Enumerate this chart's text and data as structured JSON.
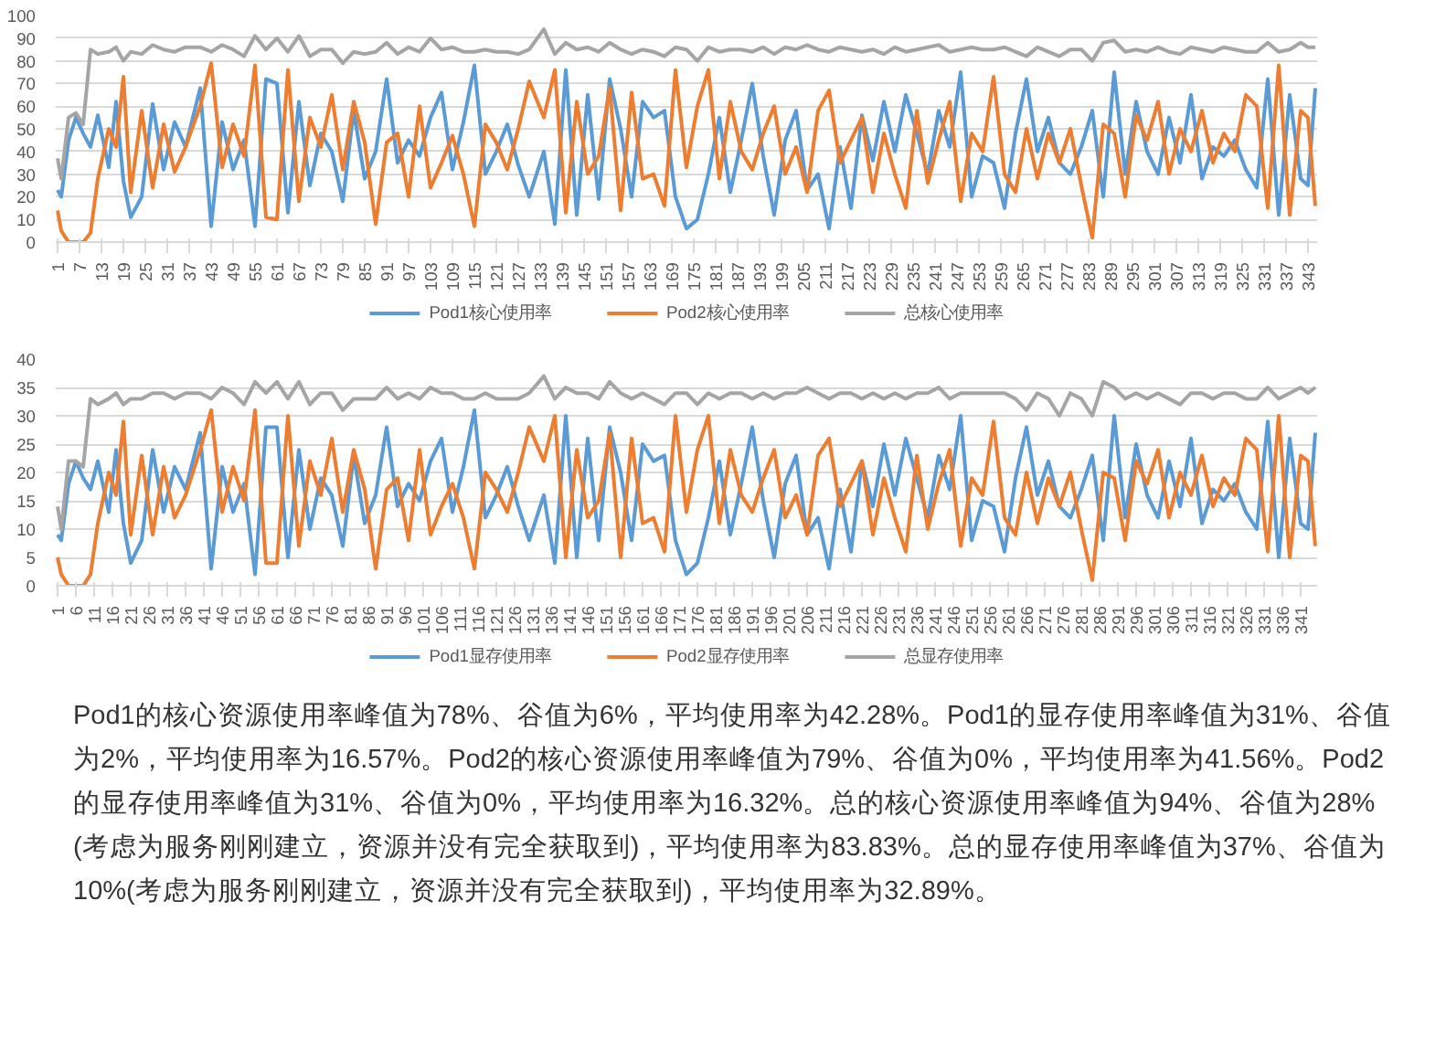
{
  "chart_data": [
    {
      "type": "line",
      "x": [
        1,
        2,
        4,
        6,
        8,
        10,
        12,
        15,
        17,
        19,
        21,
        24,
        27,
        30,
        33,
        36,
        40,
        43,
        46,
        49,
        52,
        55,
        58,
        61,
        64,
        67,
        70,
        73,
        76,
        79,
        82,
        85,
        88,
        91,
        94,
        97,
        100,
        103,
        106,
        109,
        112,
        115,
        118,
        121,
        124,
        127,
        130,
        134,
        137,
        140,
        143,
        146,
        149,
        152,
        155,
        158,
        161,
        164,
        167,
        170,
        173,
        176,
        179,
        182,
        185,
        188,
        191,
        194,
        197,
        200,
        203,
        206,
        209,
        212,
        215,
        218,
        221,
        224,
        227,
        230,
        233,
        236,
        239,
        242,
        245,
        248,
        251,
        254,
        257,
        260,
        263,
        266,
        269,
        272,
        275,
        278,
        281,
        284,
        287,
        290,
        293,
        296,
        299,
        302,
        305,
        308,
        311,
        314,
        317,
        320,
        323,
        326,
        329,
        332,
        335,
        338,
        341,
        343,
        345
      ],
      "xlim": [
        0.5,
        345.5
      ],
      "ylim": [
        0,
        100
      ],
      "yticks": [
        0,
        10,
        20,
        30,
        40,
        50,
        60,
        70,
        80,
        90,
        100
      ],
      "xticks": [
        1,
        7,
        13,
        19,
        25,
        31,
        37,
        43,
        49,
        55,
        61,
        67,
        73,
        79,
        85,
        91,
        97,
        103,
        109,
        115,
        121,
        127,
        133,
        139,
        145,
        151,
        157,
        163,
        169,
        175,
        181,
        187,
        193,
        199,
        205,
        211,
        217,
        223,
        229,
        235,
        241,
        247,
        253,
        259,
        265,
        271,
        277,
        283,
        289,
        295,
        301,
        307,
        313,
        319,
        325,
        331,
        337,
        343
      ],
      "grid": "y",
      "legend": "bottom",
      "line_style": "solid",
      "marker": "none",
      "series": [
        {
          "name": "Pod1核心使用率",
          "color": "#5b9bd5",
          "values": [
            23,
            20,
            45,
            55,
            48,
            42,
            56,
            33,
            62,
            27,
            11,
            20,
            61,
            32,
            53,
            42,
            68,
            7,
            53,
            32,
            45,
            7,
            72,
            70,
            13,
            62,
            25,
            48,
            40,
            18,
            58,
            28,
            40,
            72,
            35,
            45,
            38,
            55,
            66,
            32,
            53,
            78,
            30,
            40,
            52,
            34,
            20,
            40,
            8,
            76,
            12,
            65,
            19,
            72,
            50,
            20,
            62,
            55,
            58,
            20,
            6,
            10,
            30,
            55,
            22,
            45,
            70,
            38,
            12,
            45,
            58,
            23,
            30,
            6,
            42,
            15,
            56,
            36,
            62,
            40,
            65,
            48,
            30,
            58,
            42,
            75,
            20,
            38,
            35,
            15,
            48,
            72,
            40,
            55,
            35,
            30,
            42,
            58,
            20,
            75,
            30,
            62,
            40,
            30,
            55,
            35,
            65,
            28,
            42,
            38,
            45,
            32,
            24,
            72,
            12,
            65,
            28,
            25,
            68
          ]
        },
        {
          "name": "Pod2核心使用率",
          "color": "#ed7d31",
          "values": [
            14,
            5,
            0,
            0,
            0,
            4,
            28,
            50,
            42,
            73,
            22,
            58,
            24,
            52,
            31,
            42,
            60,
            79,
            33,
            52,
            38,
            78,
            11,
            10,
            76,
            18,
            55,
            42,
            65,
            32,
            62,
            44,
            8,
            44,
            48,
            20,
            60,
            24,
            35,
            47,
            30,
            7,
            52,
            44,
            32,
            50,
            71,
            55,
            76,
            13,
            62,
            30,
            38,
            68,
            14,
            66,
            28,
            30,
            16,
            76,
            33,
            60,
            76,
            28,
            62,
            40,
            32,
            48,
            60,
            30,
            42,
            22,
            58,
            67,
            35,
            45,
            55,
            22,
            48,
            30,
            15,
            58,
            26,
            45,
            62,
            18,
            48,
            40,
            73,
            30,
            22,
            50,
            28,
            48,
            35,
            50,
            25,
            2,
            52,
            48,
            20,
            56,
            45,
            62,
            30,
            50,
            40,
            58,
            35,
            48,
            40,
            65,
            60,
            15,
            78,
            12,
            58,
            55,
            16
          ]
        },
        {
          "name": "总核心使用率",
          "color": "#a5a5a5",
          "values": [
            37,
            28,
            55,
            57,
            52,
            85,
            83,
            84,
            86,
            80,
            84,
            83,
            87,
            85,
            84,
            86,
            86,
            84,
            87,
            85,
            82,
            91,
            85,
            90,
            84,
            91,
            82,
            85,
            85,
            79,
            84,
            83,
            84,
            88,
            83,
            86,
            84,
            90,
            85,
            86,
            84,
            84,
            85,
            84,
            84,
            83,
            85,
            94,
            83,
            88,
            85,
            86,
            84,
            88,
            85,
            83,
            85,
            84,
            82,
            86,
            85,
            80,
            86,
            84,
            85,
            85,
            84,
            86,
            83,
            86,
            85,
            87,
            85,
            84,
            86,
            85,
            84,
            85,
            83,
            86,
            84,
            85,
            86,
            87,
            84,
            85,
            86,
            85,
            85,
            86,
            84,
            82,
            86,
            84,
            82,
            85,
            85,
            80,
            88,
            89,
            84,
            85,
            84,
            86,
            84,
            83,
            86,
            85,
            84,
            86,
            85,
            84,
            84,
            88,
            84,
            85,
            88,
            86,
            86
          ]
        }
      ]
    },
    {
      "type": "line",
      "x": [
        1,
        2,
        4,
        6,
        8,
        10,
        12,
        15,
        17,
        19,
        21,
        24,
        27,
        30,
        33,
        36,
        40,
        43,
        46,
        49,
        52,
        55,
        58,
        61,
        64,
        67,
        70,
        73,
        76,
        79,
        82,
        85,
        88,
        91,
        94,
        97,
        100,
        103,
        106,
        109,
        112,
        115,
        118,
        121,
        124,
        127,
        130,
        134,
        137,
        140,
        143,
        146,
        149,
        152,
        155,
        158,
        161,
        164,
        167,
        170,
        173,
        176,
        179,
        182,
        185,
        188,
        191,
        194,
        197,
        200,
        203,
        206,
        209,
        212,
        215,
        218,
        221,
        224,
        227,
        230,
        233,
        236,
        239,
        242,
        245,
        248,
        251,
        254,
        257,
        260,
        263,
        266,
        269,
        272,
        275,
        278,
        281,
        284,
        287,
        290,
        293,
        296,
        299,
        302,
        305,
        308,
        311,
        314,
        317,
        320,
        323,
        326,
        329,
        332,
        335,
        338,
        341,
        343,
        345
      ],
      "xlim": [
        0.5,
        345.5
      ],
      "ylim": [
        0,
        40
      ],
      "yticks": [
        0,
        5,
        10,
        15,
        20,
        25,
        30,
        35,
        40
      ],
      "xticks": [
        1,
        6,
        11,
        16,
        21,
        26,
        31,
        36,
        41,
        46,
        51,
        56,
        61,
        66,
        71,
        76,
        81,
        86,
        91,
        96,
        101,
        106,
        111,
        116,
        121,
        126,
        131,
        136,
        141,
        146,
        151,
        156,
        161,
        166,
        171,
        176,
        181,
        186,
        191,
        196,
        201,
        206,
        211,
        216,
        221,
        226,
        231,
        236,
        241,
        246,
        251,
        256,
        261,
        266,
        271,
        276,
        281,
        286,
        291,
        296,
        301,
        306,
        311,
        316,
        321,
        326,
        331,
        336,
        341
      ],
      "grid": "y",
      "legend": "bottom",
      "line_style": "solid",
      "marker": "none",
      "series": [
        {
          "name": "Pod1显存使用率",
          "color": "#5b9bd5",
          "values": [
            9,
            8,
            18,
            22,
            19,
            17,
            22,
            13,
            24,
            11,
            4,
            8,
            24,
            13,
            21,
            17,
            27,
            3,
            21,
            13,
            18,
            2,
            28,
            28,
            5,
            24,
            10,
            19,
            16,
            7,
            23,
            11,
            16,
            28,
            14,
            18,
            15,
            22,
            26,
            13,
            21,
            31,
            12,
            16,
            21,
            14,
            8,
            16,
            4,
            30,
            5,
            26,
            8,
            28,
            20,
            8,
            25,
            22,
            23,
            8,
            2,
            4,
            12,
            22,
            9,
            18,
            28,
            15,
            5,
            18,
            23,
            9,
            12,
            3,
            17,
            6,
            22,
            14,
            25,
            16,
            26,
            19,
            12,
            23,
            17,
            30,
            8,
            15,
            14,
            6,
            19,
            28,
            16,
            22,
            14,
            12,
            17,
            23,
            8,
            30,
            12,
            25,
            16,
            12,
            22,
            14,
            26,
            11,
            17,
            15,
            18,
            13,
            10,
            29,
            5,
            26,
            11,
            10,
            27
          ]
        },
        {
          "name": "Pod2显存使用率",
          "color": "#ed7d31",
          "values": [
            5,
            2,
            0,
            0,
            0,
            2,
            11,
            20,
            16,
            29,
            9,
            23,
            9,
            21,
            12,
            16,
            24,
            31,
            13,
            21,
            15,
            31,
            4,
            4,
            30,
            7,
            22,
            16,
            26,
            13,
            24,
            17,
            3,
            17,
            19,
            8,
            24,
            9,
            14,
            18,
            12,
            3,
            20,
            17,
            13,
            20,
            28,
            22,
            30,
            5,
            24,
            12,
            15,
            27,
            5,
            26,
            11,
            12,
            6,
            30,
            13,
            24,
            30,
            11,
            24,
            16,
            13,
            19,
            24,
            12,
            16,
            9,
            23,
            26,
            14,
            18,
            22,
            9,
            19,
            12,
            6,
            23,
            10,
            18,
            24,
            7,
            19,
            16,
            29,
            12,
            9,
            20,
            11,
            19,
            14,
            20,
            10,
            1,
            20,
            19,
            8,
            22,
            18,
            24,
            12,
            20,
            16,
            23,
            14,
            19,
            16,
            26,
            24,
            6,
            30,
            5,
            23,
            22,
            7
          ]
        },
        {
          "name": "总显存使用率",
          "color": "#a5a5a5",
          "values": [
            14,
            10,
            22,
            22,
            21,
            33,
            32,
            33,
            34,
            32,
            33,
            33,
            34,
            34,
            33,
            34,
            34,
            33,
            35,
            34,
            32,
            36,
            34,
            36,
            33,
            36,
            32,
            34,
            34,
            31,
            33,
            33,
            33,
            35,
            33,
            34,
            33,
            35,
            34,
            34,
            33,
            33,
            34,
            33,
            33,
            33,
            34,
            37,
            33,
            35,
            34,
            34,
            33,
            36,
            34,
            33,
            34,
            33,
            32,
            34,
            34,
            32,
            34,
            33,
            34,
            34,
            33,
            34,
            33,
            34,
            34,
            35,
            34,
            33,
            34,
            34,
            33,
            34,
            33,
            34,
            33,
            34,
            34,
            35,
            33,
            34,
            34,
            34,
            34,
            34,
            33,
            31,
            34,
            33,
            30,
            34,
            33,
            30,
            36,
            35,
            33,
            34,
            33,
            34,
            33,
            32,
            34,
            34,
            33,
            34,
            34,
            33,
            33,
            35,
            33,
            34,
            35,
            34,
            35
          ]
        }
      ]
    },
    {
      "type": "other",
      "annotations": [
        "Pod1的核心资源使用率峰值为78%、谷值为6%，平均使用率为42.28%。Pod1的显存使用率峰值为31%、谷值为2%，平均使用率为16.57%。Pod2的核心资源使用率峰值为79%、谷值为0%，平均使用率为41.56%。Pod2的显存使用率峰值为31%、谷值为0%，平均使用率为16.32%。总的核心资源使用率峰值为94%、谷值为28%(考虑为服务刚刚建立，资源并没有完全获取到)，平均使用率为83.83%。总的显存使用率峰值为37%、谷值为10%(考虑为服务刚刚建立，资源并没有完全获取到)，平均使用率为32.89%。"
      ]
    }
  ]
}
